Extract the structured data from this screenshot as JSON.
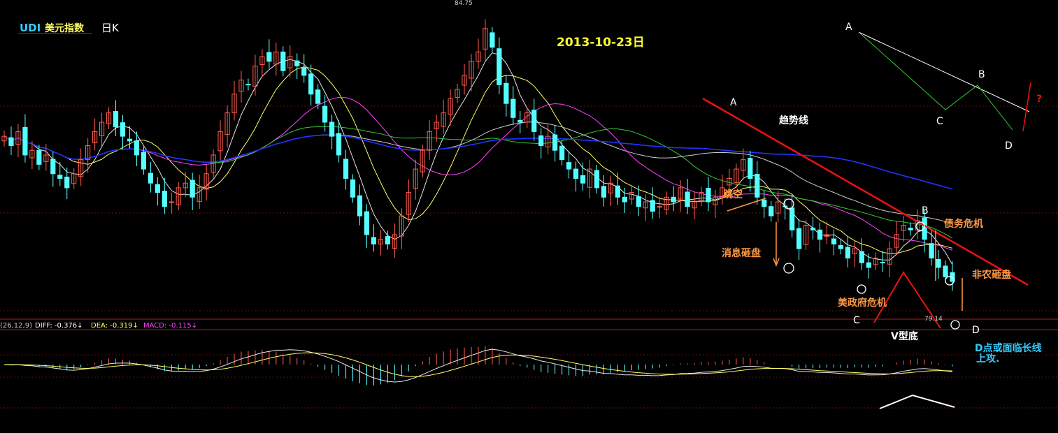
{
  "header": {
    "index_name": "UDI",
    "index_name_cn": "美元指数",
    "period": "日K",
    "date": "2013-10-23日"
  },
  "price_labels": {
    "high": "84.75",
    "low": "79.14"
  },
  "macd_readout": {
    "params": "(26,12,9)",
    "diff": "DIFF: -0.376↓",
    "dea": "DEA: -0.319↓",
    "macd": "MACD: -0.115↓"
  },
  "annotations": {
    "trendline": "趋势线",
    "gap": "跳空",
    "news_hit": "消息砸盘",
    "debt_crisis": "债务危机",
    "nonfarm_hit": "非农砸盘",
    "gov_crisis": "美政府危机",
    "v_bottom": "V型底",
    "d_outlook_line1": "D点或面临长线",
    "d_outlook_line2": "上攻.",
    "point_A": "A",
    "point_B": "B",
    "point_C": "C",
    "point_D": "D"
  },
  "inset": {
    "point_A": "A",
    "point_B": "B",
    "point_C": "C",
    "point_D": "D",
    "question": "?"
  },
  "colors": {
    "background": "#000000",
    "bull_candle": "#ff5a4a",
    "bear_candle": "#54ffff",
    "ma_white": "#e8e8e8",
    "ma_yellow": "#ffff66",
    "ma_magenta": "#ff44ff",
    "ma_green": "#33cc33",
    "ma_gray": "#cccccc",
    "ma_blue": "#2233ff",
    "trendline": "#ee1111",
    "annotation_orange": "#ff9944",
    "title_yellow": "#ffff33",
    "cyan_text": "#33ccff"
  },
  "chart_data": {
    "type": "candlestick",
    "title": "UDI 美元指数 日K",
    "period": "daily",
    "date_label": "2013-10-23日",
    "highest_marked": 84.75,
    "lowest_marked": 79.14,
    "price_range_estimate": [
      78.5,
      85.0
    ],
    "note_series_values_estimated": true,
    "closes": [
      82.3,
      82.1,
      82.4,
      81.9,
      82.0,
      81.7,
      81.9,
      81.5,
      81.4,
      81.2,
      81.5,
      81.8,
      82.1,
      82.4,
      82.6,
      82.8,
      82.5,
      82.3,
      82.2,
      81.9,
      81.6,
      81.3,
      81.1,
      80.8,
      80.9,
      81.2,
      81.3,
      81.0,
      81.2,
      81.5,
      81.9,
      82.4,
      82.8,
      83.2,
      83.5,
      83.4,
      83.8,
      84.0,
      83.9,
      84.1,
      83.7,
      84.0,
      83.8,
      83.6,
      83.2,
      83.0,
      82.6,
      82.3,
      81.9,
      81.4,
      81.0,
      80.6,
      80.2,
      80.0,
      80.1,
      80.0,
      80.2,
      80.6,
      81.1,
      81.6,
      82.0,
      82.4,
      82.6,
      82.8,
      83.1,
      83.3,
      83.6,
      83.9,
      84.1,
      84.6,
      84.2,
      83.4,
      83.0,
      82.7,
      82.6,
      82.8,
      82.4,
      82.1,
      82.3,
      82.0,
      81.8,
      81.6,
      81.4,
      81.3,
      81.6,
      81.2,
      81.0,
      81.3,
      81.0,
      80.9,
      81.1,
      80.8,
      80.9,
      80.7,
      80.8,
      81.0,
      80.9,
      81.2,
      80.8,
      80.9,
      81.1,
      80.9,
      81.0,
      81.2,
      81.4,
      81.6,
      81.8,
      81.4,
      81.0,
      80.8,
      80.6,
      80.9,
      80.8,
      80.3,
      79.9,
      80.4,
      80.3,
      80.1,
      80.2,
      80.0,
      79.9,
      79.7,
      79.9,
      79.6,
      79.5,
      79.7,
      79.6,
      79.9,
      80.2,
      80.4,
      80.3,
      80.5,
      80.1,
      79.7,
      79.5,
      79.3,
      79.2
    ]
  }
}
